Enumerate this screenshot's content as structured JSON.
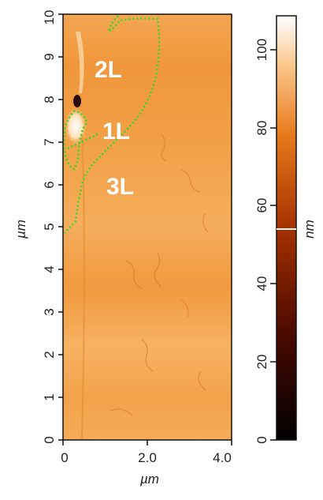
{
  "image": {
    "x_axis": {
      "label": "µm",
      "ticks": [
        "0",
        "2.0",
        "4.0"
      ]
    },
    "y_axis": {
      "label": "µm",
      "ticks": [
        "0",
        "1",
        "2",
        "3",
        "4",
        "5",
        "6",
        "7",
        "8",
        "9",
        "10"
      ]
    },
    "colorbar": {
      "unit_label": "nm",
      "ticks": [
        "0",
        "20",
        "40",
        "60",
        "80",
        "100"
      ],
      "marker_value": 54
    },
    "regions": [
      "2L",
      "1L",
      "3L"
    ],
    "colors": {
      "outline": "#33dd22",
      "map_base": "#f29a3c",
      "map_light": "#f6b262",
      "colorbar_dark": "#000000",
      "colorbar_light": "#ffffff"
    }
  }
}
